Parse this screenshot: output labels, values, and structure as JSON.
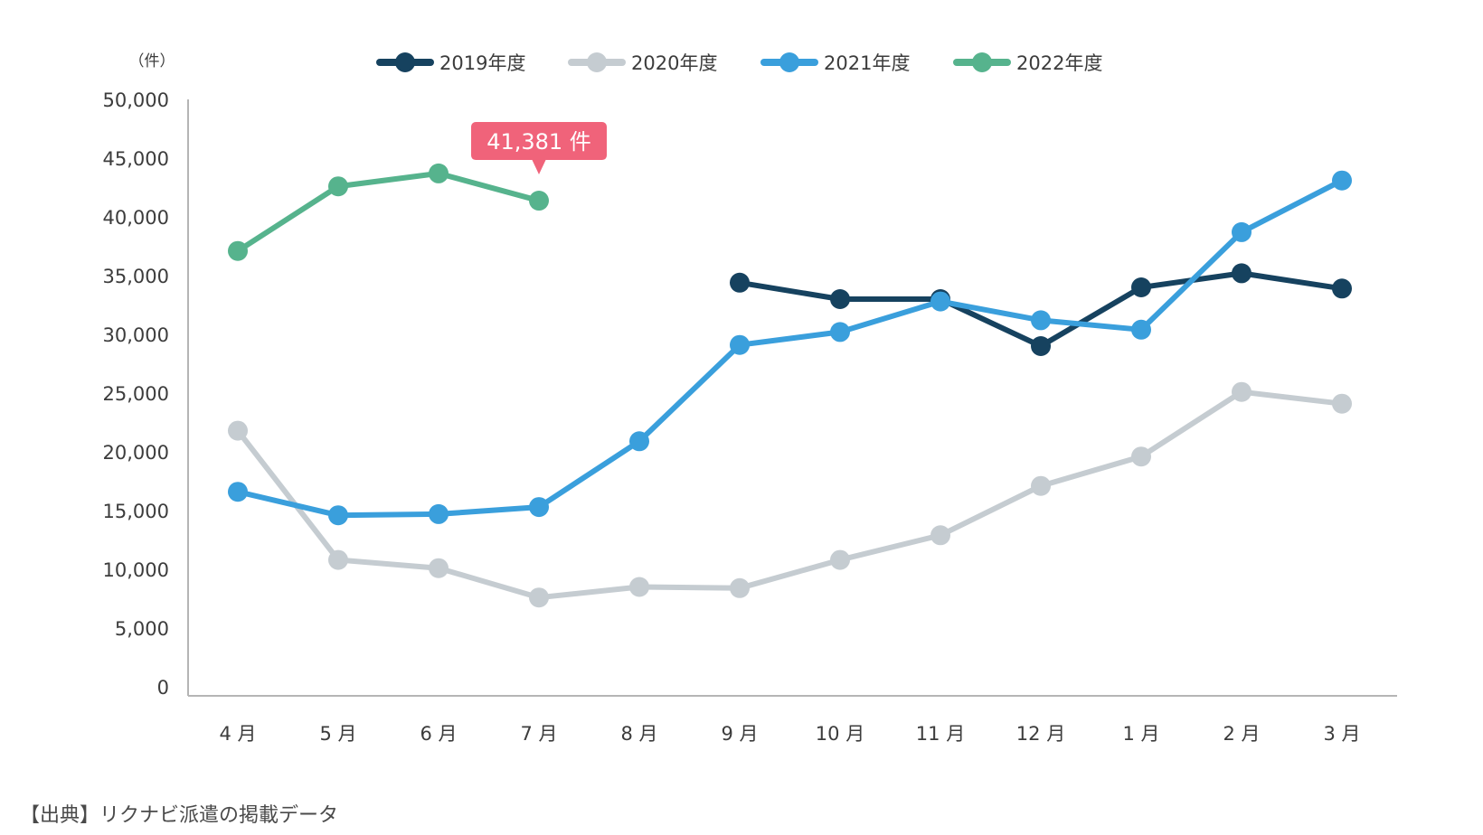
{
  "chart_data": {
    "type": "line",
    "title": "",
    "xlabel": "",
    "ylabel": "",
    "unit_label": "（件）",
    "categories": [
      "4 月",
      "5 月",
      "6 月",
      "7 月",
      "8 月",
      "9 月",
      "10 月",
      "11 月",
      "12 月",
      "1 月",
      "2 月",
      "3 月"
    ],
    "yticks": [
      "50,000",
      "45,000",
      "40,000",
      "35,000",
      "30,000",
      "25,000",
      "20,000",
      "15,000",
      "10,000",
      "5,000",
      "0"
    ],
    "ylim": [
      0,
      50000
    ],
    "grid": false,
    "legend_position": "top",
    "series": [
      {
        "name": "2019年度",
        "color": "#16425f",
        "values": [
          null,
          null,
          null,
          null,
          null,
          34400,
          33000,
          33000,
          29000,
          34000,
          35200,
          33900
        ]
      },
      {
        "name": "2020年度",
        "color": "#c5ccd1",
        "values": [
          21800,
          10800,
          10100,
          7600,
          8500,
          8400,
          10800,
          12900,
          17100,
          19600,
          25100,
          24100
        ]
      },
      {
        "name": "2021年度",
        "color": "#3a9fdc",
        "values": [
          16600,
          14600,
          14700,
          15300,
          20900,
          29100,
          30200,
          32800,
          31200,
          30400,
          38700,
          43100
        ]
      },
      {
        "name": "2022年度",
        "color": "#56b38d",
        "values": [
          37100,
          42600,
          43700,
          41381,
          null,
          null,
          null,
          null,
          null,
          null,
          null,
          null
        ]
      }
    ],
    "annotations": [
      {
        "series": "2022年度",
        "category": "7 月",
        "text": "41,381 件",
        "color": "#f0637a"
      }
    ]
  },
  "source_note": "【出典】リクナビ派遣の掲載データ"
}
